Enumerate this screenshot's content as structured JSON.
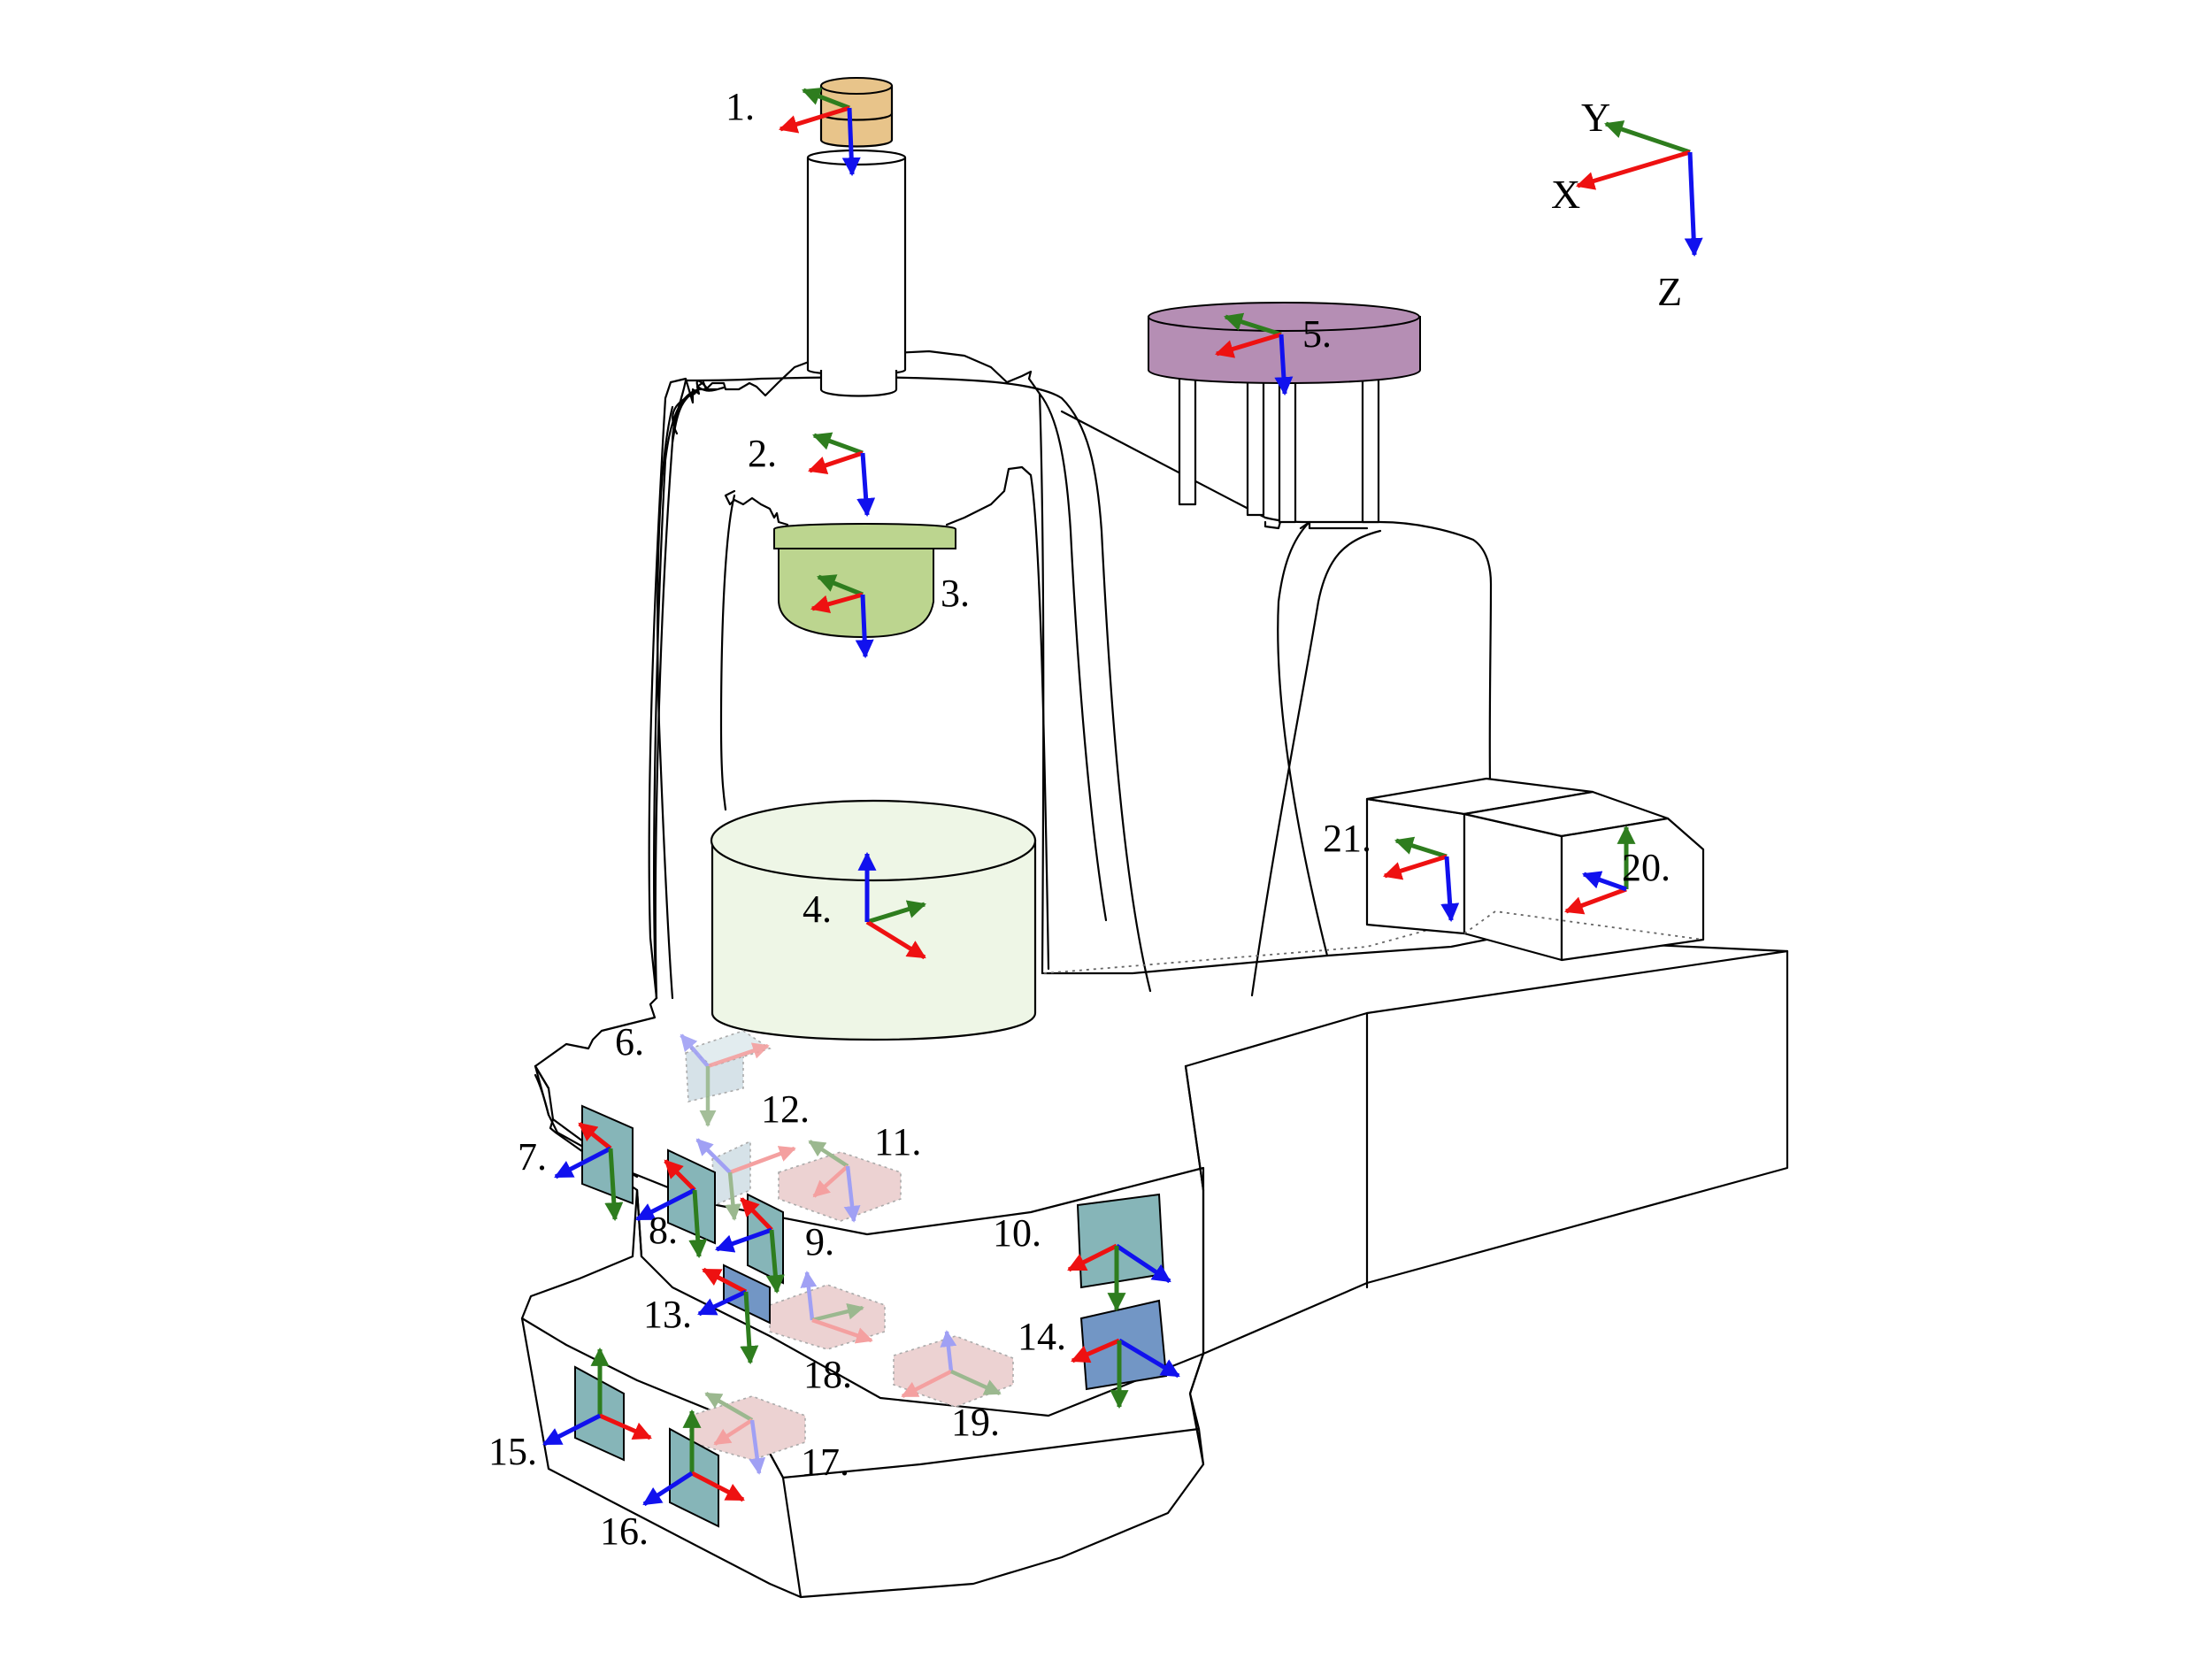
{
  "colors": {
    "x_axis": "#ee1111",
    "y_axis": "#2e7d1e",
    "z_axis": "#1111ee",
    "part_1": "#e8c48a",
    "part_3": "#bcd58f",
    "part_4": "#eef6e6",
    "part_5": "#b58eb4",
    "sensor_plate": "#86b5b8",
    "sensor_plate_dark": "#7296c5",
    "ghost_plate": "#e8c8c8"
  },
  "reference_axes": {
    "x": "X",
    "y": "Y",
    "z": "Z"
  },
  "labels": {
    "l1": "1.",
    "l2": "2.",
    "l3": "3.",
    "l4": "4.",
    "l5": "5.",
    "l6": "6.",
    "l7": "7.",
    "l8": "8.",
    "l9": "9.",
    "l10": "10.",
    "l11": "11.",
    "l12": "12.",
    "l13": "13.",
    "l14": "14.",
    "l15": "15.",
    "l16": "16.",
    "l17": "17.",
    "l18": "18.",
    "l19": "19.",
    "l20": "20.",
    "l21": "21."
  }
}
